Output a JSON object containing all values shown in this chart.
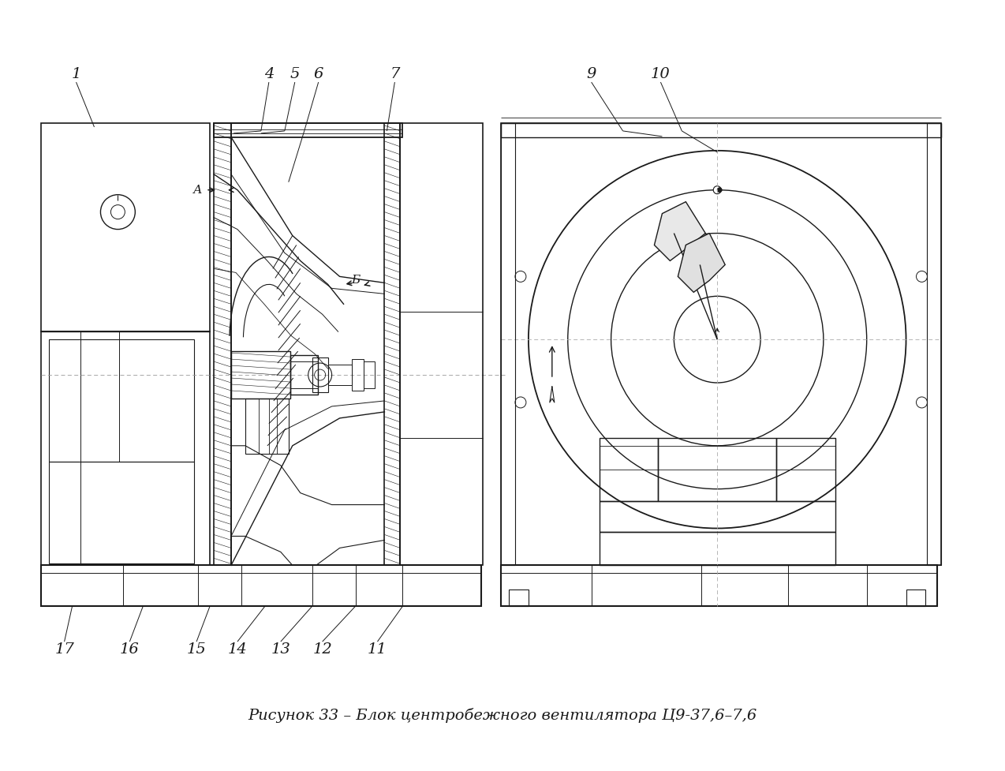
{
  "title": "Рисунок 33 – Блок центробежного вентилятора Ц9-37,6–7,6",
  "title_fontsize": 14,
  "bg_color": "#ffffff",
  "line_color": "#1a1a1a",
  "fig_width": 12.74,
  "fig_height": 9.77
}
